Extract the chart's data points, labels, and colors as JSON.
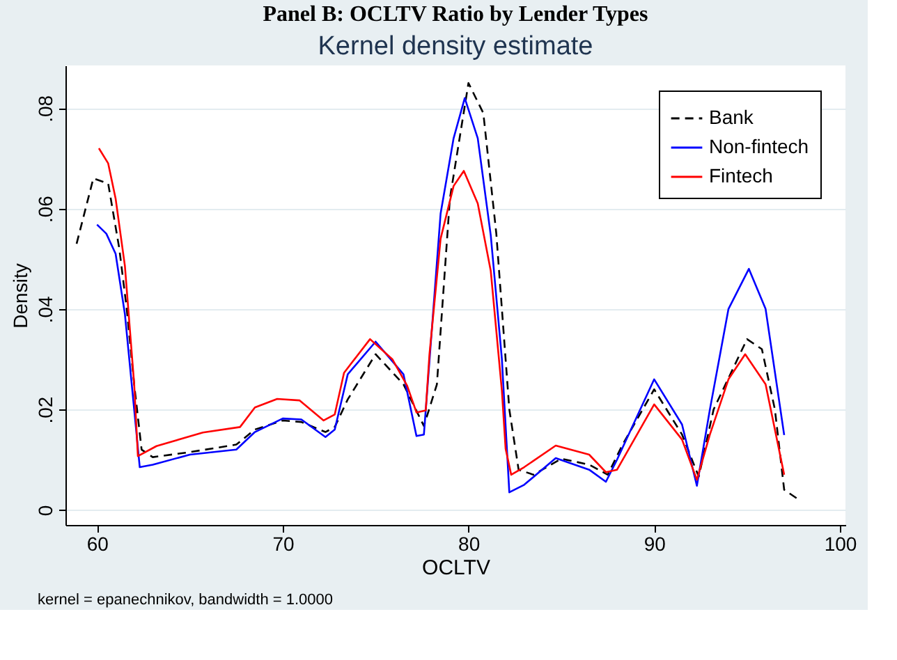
{
  "chart_data": {
    "type": "line",
    "title": "Panel B: OCLTV Ratio by Lender Types",
    "subtitle": "Kernel density estimate",
    "xlabel": "OCLTV",
    "ylabel": "Density",
    "annotations": [
      "kernel = epanechnikov, bandwidth = 1.0000"
    ],
    "xlim": [
      58.3,
      100.3
    ],
    "ylim": [
      -0.003,
      0.0885
    ],
    "xticks": [
      60,
      70,
      80,
      90,
      100
    ],
    "yticks": [
      {
        "value": 0,
        "label": "0"
      },
      {
        "value": 0.02,
        "label": ".02"
      },
      {
        "value": 0.04,
        "label": ".04"
      },
      {
        "value": 0.06,
        "label": ".06"
      },
      {
        "value": 0.08,
        "label": ".08"
      }
    ],
    "grid": "y",
    "legend": "top right",
    "marker": "none",
    "series": [
      {
        "name": "Bank",
        "color": "#000000",
        "line_style": "dashed",
        "x": [
          58.9,
          59.8,
          60.6,
          61.2,
          61.6,
          62.0,
          62.4,
          63.0,
          65.0,
          67.5,
          68.5,
          70.0,
          71.0,
          72.3,
          72.8,
          73.5,
          75.0,
          76.5,
          77.6,
          78.3,
          79.0,
          80.0,
          80.8,
          81.5,
          82.2,
          82.7,
          83.5,
          85.0,
          86.5,
          87.5,
          88.3,
          90.0,
          91.5,
          92.4,
          93.2,
          95.0,
          95.8,
          96.5,
          97.0,
          97.8
        ],
        "values": [
          0.053,
          0.066,
          0.065,
          0.052,
          0.04,
          0.025,
          0.012,
          0.0105,
          0.0115,
          0.013,
          0.016,
          0.0178,
          0.0175,
          0.0155,
          0.0165,
          0.022,
          0.031,
          0.025,
          0.0167,
          0.025,
          0.062,
          0.085,
          0.079,
          0.055,
          0.02,
          0.008,
          0.007,
          0.0102,
          0.009,
          0.007,
          0.013,
          0.024,
          0.015,
          0.0066,
          0.02,
          0.034,
          0.032,
          0.02,
          0.004,
          0.002
        ]
      },
      {
        "name": "Non-fintech",
        "color": "#0000ff",
        "line_style": "solid",
        "x": [
          60.0,
          60.5,
          61.0,
          61.5,
          62.0,
          62.3,
          63.0,
          65.0,
          67.5,
          68.5,
          70.0,
          71.0,
          72.3,
          72.8,
          73.5,
          75.0,
          76.5,
          77.2,
          77.6,
          78.5,
          79.2,
          79.8,
          80.5,
          81.2,
          81.8,
          82.2,
          83.0,
          84.7,
          86.5,
          87.4,
          88.0,
          90.0,
          91.5,
          92.3,
          93.0,
          94.0,
          95.1,
          96.0,
          97.0
        ],
        "values": [
          0.0568,
          0.055,
          0.051,
          0.039,
          0.02,
          0.0085,
          0.009,
          0.011,
          0.012,
          0.0155,
          0.0182,
          0.018,
          0.0145,
          0.016,
          0.027,
          0.0335,
          0.027,
          0.0147,
          0.015,
          0.059,
          0.074,
          0.082,
          0.074,
          0.0547,
          0.03,
          0.0035,
          0.005,
          0.0103,
          0.008,
          0.0056,
          0.01,
          0.026,
          0.017,
          0.0048,
          0.02,
          0.04,
          0.048,
          0.04,
          0.0149
        ]
      },
      {
        "name": "Fintech",
        "color": "#ff0000",
        "line_style": "solid",
        "x": [
          60.1,
          60.6,
          61.0,
          61.5,
          62.0,
          62.2,
          63.2,
          65.7,
          67.7,
          68.5,
          69.7,
          70.9,
          72.2,
          72.8,
          73.3,
          74.7,
          75.9,
          76.7,
          77.2,
          77.7,
          77.9,
          78.5,
          79.2,
          79.75,
          80.5,
          81.2,
          81.8,
          82.0,
          82.3,
          83.0,
          84.7,
          86.5,
          87.4,
          88.0,
          90.0,
          91.5,
          92.3,
          93.0,
          94.0,
          94.9,
          96.0,
          97.0
        ],
        "values": [
          0.072,
          0.069,
          0.062,
          0.0486,
          0.025,
          0.0107,
          0.0127,
          0.0154,
          0.0165,
          0.0204,
          0.0221,
          0.0218,
          0.0178,
          0.019,
          0.0273,
          0.034,
          0.03,
          0.0247,
          0.0194,
          0.0198,
          0.031,
          0.054,
          0.0645,
          0.0675,
          0.061,
          0.0476,
          0.0237,
          0.0122,
          0.007,
          0.0085,
          0.0128,
          0.011,
          0.0075,
          0.008,
          0.021,
          0.014,
          0.006,
          0.015,
          0.026,
          0.031,
          0.025,
          0.007
        ]
      }
    ]
  }
}
